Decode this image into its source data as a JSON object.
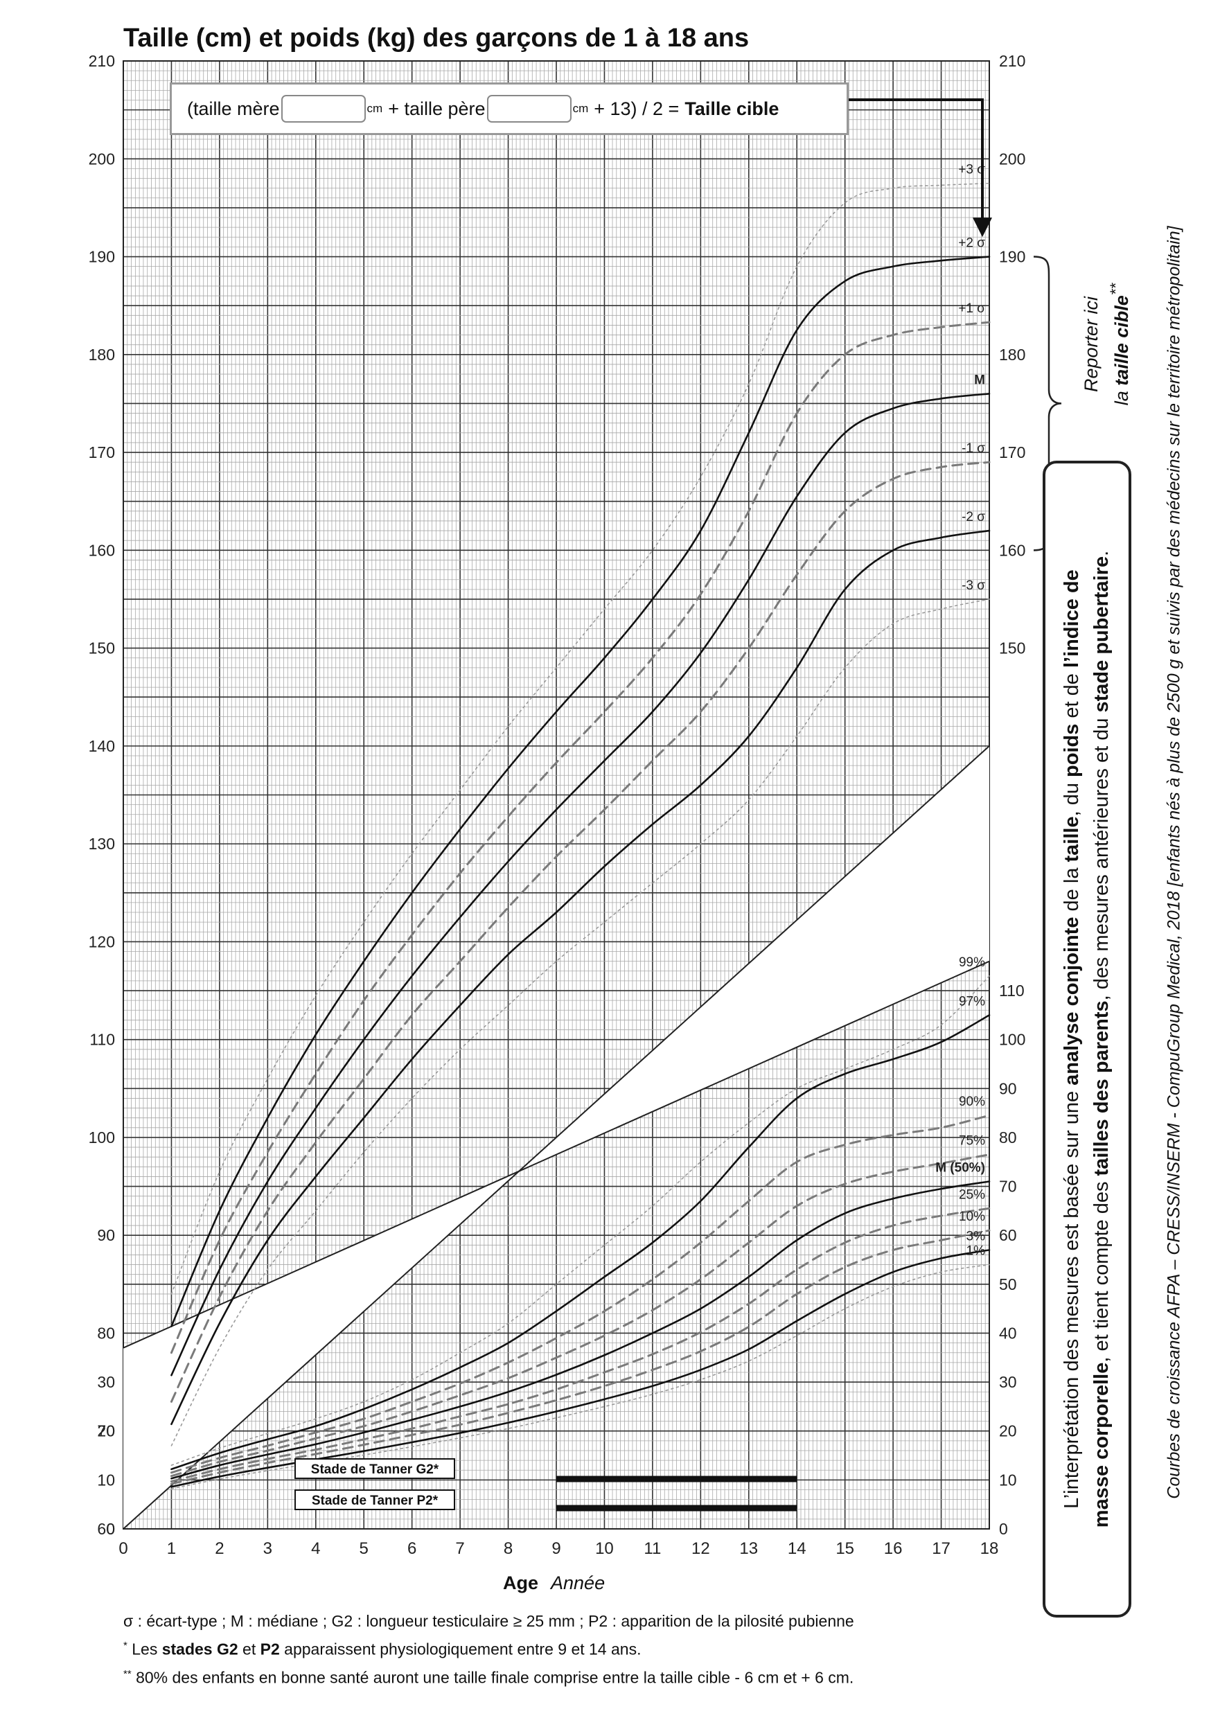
{
  "title": "Taille (cm) et poids (kg) des garçons de 1 à 18 ans",
  "formula": {
    "open": "(taille mère",
    "cm1": "cm",
    "plus": "+  taille père",
    "cm2": "cm",
    "rest": "+ 13) / 2 =",
    "bold": "Taille cible"
  },
  "reporter": {
    "line1": "Reporter ici",
    "line2_prefix": "la ",
    "line2_bold": "taille cible",
    "line2_sup": "**"
  },
  "right_box": {
    "line1_parts": [
      {
        "t": "L’interprétation des mesures est basée sur une ",
        "b": false
      },
      {
        "t": "analyse conjointe",
        "b": true
      },
      {
        "t": " de la ",
        "b": false
      },
      {
        "t": "taille",
        "b": true
      },
      {
        "t": ", du ",
        "b": false
      },
      {
        "t": "poids",
        "b": true
      },
      {
        "t": " et de ",
        "b": false
      },
      {
        "t": "l’indice de",
        "b": true
      }
    ],
    "line2_parts": [
      {
        "t": "masse corporelle",
        "b": true
      },
      {
        "t": ", et tient compte des ",
        "b": false
      },
      {
        "t": "tailles des parents",
        "b": true
      },
      {
        "t": ", des mesures antérieures et du ",
        "b": false
      },
      {
        "t": "stade pubertaire",
        "b": true
      },
      {
        "t": ".",
        "b": false
      }
    ]
  },
  "side_note": "Courbes de croissance  AFPA – CRESS/INSERM - CompuGroup Medical, 2018 [enfants nés à plus de 2500 g et suivis par des médecins sur le territoire métropolitain]",
  "axis": {
    "age_label": "Age",
    "year_label": "Année",
    "x_ticks": [
      "0",
      "1",
      "2",
      "3",
      "4",
      "5",
      "6",
      "7",
      "8",
      "9",
      "10",
      "11",
      "12",
      "13",
      "14",
      "15",
      "16",
      "17",
      "18"
    ],
    "left_height_ticks": [
      "210",
      "200",
      "190",
      "180",
      "170",
      "160",
      "150",
      "140",
      "130",
      "120",
      "110",
      "100",
      "90",
      "80",
      "70",
      "60"
    ],
    "right_height_ticks": [
      "210",
      "200",
      "190",
      "180",
      "170",
      "160",
      "150"
    ],
    "left_weight_ticks": [
      "30",
      "20",
      "10",
      "0"
    ],
    "right_weight_ticks": [
      "110",
      "100",
      "90",
      "80",
      "70",
      "60",
      "50",
      "40",
      "30",
      "20",
      "10",
      "0"
    ]
  },
  "tanner": {
    "g2_label": "Stade de Tanner G2*",
    "p2_label": "Stade de Tanner P2*",
    "from_age": 9,
    "to_age": 14
  },
  "footnotes": {
    "line1": "σ : écart-type ; M : médiane ; G2 : longueur testiculaire ≥ 25 mm ; P2 : apparition de la pilosité pubienne",
    "line2_sup": "*",
    "line2_a": "  Les ",
    "line2_b1": "stades G2",
    "line2_c": " et ",
    "line2_b2": "P2",
    "line2_d": " apparaissent physiologiquement entre 9 et 14 ans.",
    "line3_sup": "**",
    "line3": " 80% des enfants en bonne santé auront une taille finale comprise entre la taille cible - 6 cm et + 6 cm."
  },
  "chart_data": [
    {
      "type": "line",
      "title": "Taille (cm)",
      "x_unit": "Année",
      "xlim": [
        0,
        18
      ],
      "ylim": [
        60,
        210
      ],
      "x": [
        1,
        2,
        3,
        4,
        5,
        6,
        7,
        8,
        9,
        10,
        11,
        12,
        13,
        14,
        15,
        16,
        17,
        18
      ],
      "series": [
        {
          "name": "+3 σ",
          "style": "dotted",
          "values": [
            84,
            96.5,
            106,
            114.5,
            122,
            129,
            135.5,
            142,
            148,
            154,
            160,
            167.5,
            177,
            189,
            195.5,
            197,
            197.3,
            197.5
          ]
        },
        {
          "name": "+2 σ",
          "style": "solid",
          "values": [
            80.7,
            92.5,
            102,
            110.5,
            118,
            125,
            131.5,
            137.7,
            143.5,
            149,
            155,
            162,
            172,
            182.5,
            187.5,
            189,
            189.6,
            190
          ]
        },
        {
          "name": "+1 σ",
          "style": "dashed",
          "values": [
            78,
            89.5,
            98.5,
            106.5,
            114,
            120.7,
            127,
            132.8,
            138.3,
            143.5,
            149,
            155.5,
            164,
            174,
            180,
            182,
            182.8,
            183.3
          ]
        },
        {
          "name": "M",
          "style": "solid",
          "values": [
            75.7,
            86.5,
            95.5,
            103,
            110,
            116.5,
            122.5,
            128.2,
            133.5,
            138.5,
            143.5,
            149.5,
            157,
            165.5,
            172,
            174.5,
            175.5,
            176
          ]
        },
        {
          "name": "-1 σ",
          "style": "dashed",
          "values": [
            73,
            83.7,
            92.5,
            99.5,
            106,
            112.5,
            118,
            123.5,
            128.7,
            133.5,
            138.5,
            143.5,
            150,
            157.5,
            164,
            167.3,
            168.5,
            169
          ]
        },
        {
          "name": "-2 σ",
          "style": "solid",
          "values": [
            70.7,
            81,
            89.5,
            96,
            102,
            108,
            113.5,
            118.7,
            123,
            127.7,
            132,
            136,
            141,
            148,
            156,
            160,
            161.3,
            162
          ]
        },
        {
          "name": "-3 σ",
          "style": "dotted",
          "values": [
            68.5,
            78.5,
            86.5,
            92.5,
            98.5,
            104,
            109,
            113.5,
            118,
            122,
            126,
            130,
            134.5,
            141,
            148,
            152.5,
            154,
            155
          ]
        }
      ]
    },
    {
      "type": "line",
      "title": "Poids (kg)",
      "x_unit": "Année",
      "xlim": [
        0,
        18
      ],
      "ylim": [
        0,
        110
      ],
      "x": [
        1,
        2,
        3,
        4,
        5,
        6,
        7,
        8,
        9,
        10,
        11,
        12,
        13,
        14,
        15,
        16,
        17,
        18
      ],
      "series": [
        {
          "name": "99%",
          "style": "dotted",
          "values": [
            13,
            16.5,
            19.5,
            22.5,
            26,
            30.5,
            36,
            42,
            50,
            58,
            66,
            75,
            83,
            90,
            94,
            98,
            103,
            113
          ]
        },
        {
          "name": "97%",
          "style": "solid",
          "values": [
            12.2,
            15.5,
            18.3,
            21,
            24.5,
            28.5,
            33,
            38,
            44.5,
            51.5,
            58.5,
            67,
            78,
            88,
            93,
            96,
            99.5,
            105
          ]
        },
        {
          "name": "90%",
          "style": "dashed",
          "values": [
            11.5,
            14.5,
            17,
            19.7,
            22.5,
            26,
            29.7,
            34,
            39,
            44.5,
            51,
            58.5,
            67,
            75,
            78.5,
            80.5,
            82,
            84.5
          ]
        },
        {
          "name": "75%",
          "style": "dashed",
          "values": [
            10.8,
            13.7,
            16,
            18.5,
            21,
            24,
            27.3,
            30.8,
            35,
            39.5,
            44.7,
            51,
            58.5,
            66,
            70.5,
            73,
            74.7,
            76.5
          ]
        },
        {
          "name": "M (50%)",
          "style": "solid",
          "values": [
            10.3,
            13,
            15.2,
            17.3,
            19.7,
            22.3,
            25,
            28,
            31.5,
            35.5,
            40,
            45,
            51.5,
            59,
            64.5,
            67.5,
            69.5,
            71
          ]
        },
        {
          "name": "25%",
          "style": "dashed",
          "values": [
            9.7,
            12.2,
            14.3,
            16.2,
            18.3,
            20.5,
            23,
            25.5,
            28.5,
            32,
            35.7,
            40.2,
            46,
            53,
            58.5,
            62,
            64,
            65.5
          ]
        },
        {
          "name": "10%",
          "style": "dashed",
          "values": [
            9.2,
            11.5,
            13.5,
            15.3,
            17.2,
            19.2,
            21.3,
            23.7,
            26.3,
            29.2,
            32.5,
            36.3,
            41.3,
            48,
            53.5,
            57,
            59,
            61
          ]
        },
        {
          "name": "3%",
          "style": "solid",
          "values": [
            8.6,
            10.7,
            12.5,
            14.2,
            15.9,
            17.7,
            19.6,
            21.7,
            24,
            26.5,
            29.2,
            32.5,
            36.7,
            42.5,
            48,
            52.5,
            55.3,
            57
          ]
        },
        {
          "name": "1%",
          "style": "dotted",
          "values": [
            8.2,
            10.2,
            11.9,
            13.5,
            15.1,
            16.8,
            18.6,
            20.5,
            22.7,
            25,
            27.5,
            30.5,
            34.3,
            39.5,
            45,
            49.5,
            52.5,
            54
          ]
        }
      ]
    }
  ]
}
